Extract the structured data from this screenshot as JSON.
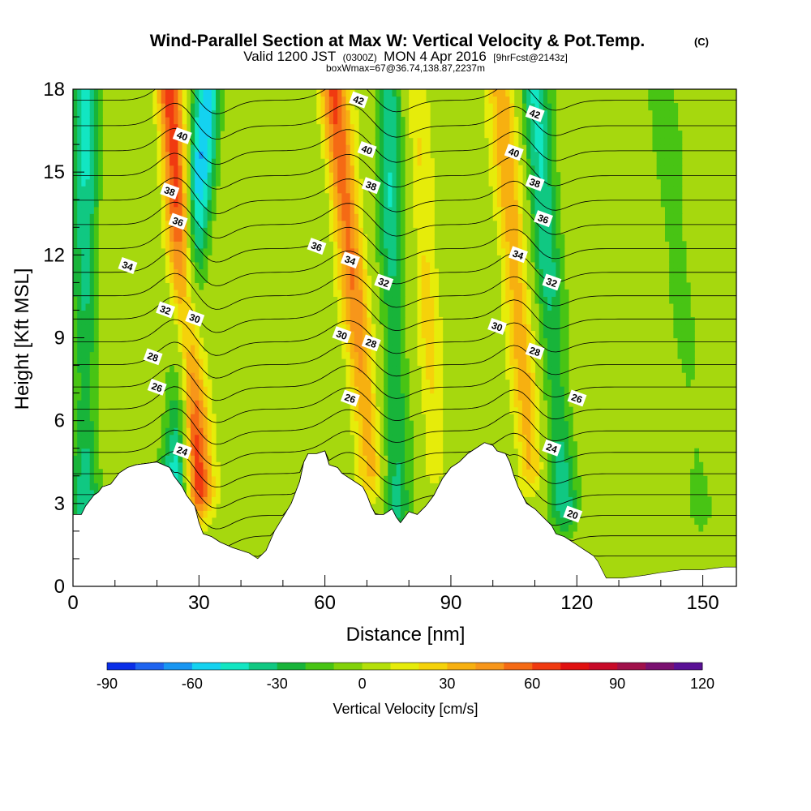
{
  "chart_data": {
    "type": "heatmap",
    "title": "Wind-Parallel Section at Max W: Vertical Velocity & Pot.Temp.",
    "title_mark": "(C)",
    "subtitle": {
      "valid_prefix": "Valid 1200 JST",
      "utc": "(0300Z)",
      "date": "MON 4 Apr 2016",
      "fcst": "[9hrFcst@2143z]"
    },
    "info_line": "boxWmax=67@36.74,138.87,2237m",
    "xlabel": "Distance [nm]",
    "ylabel": "Height [Kft MSL]",
    "xlim": [
      0,
      158
    ],
    "ylim": [
      0,
      18
    ],
    "x_ticks": [
      0,
      30,
      60,
      90,
      120,
      150
    ],
    "y_ticks": [
      0,
      3,
      6,
      9,
      12,
      15,
      18
    ],
    "y_tick_labels": [
      "0",
      "3",
      "6",
      "9",
      "12",
      "15",
      "18"
    ],
    "grid": false,
    "colorbar": {
      "label": "Vertical Velocity [cm/s]",
      "min": -90,
      "max": 120,
      "step": 10,
      "tick_values": [
        -90,
        -60,
        -30,
        0,
        30,
        60,
        90,
        120
      ],
      "colors": [
        "#0a2ee8",
        "#1e64f0",
        "#1896f2",
        "#14d2f0",
        "#12e6c2",
        "#10c882",
        "#18b43a",
        "#48c414",
        "#82d20a",
        "#b4e00a",
        "#e6ec0a",
        "#f5d20a",
        "#f7b010",
        "#f7961a",
        "#f56a14",
        "#f03a10",
        "#e01010",
        "#c80a28",
        "#a0104a",
        "#7a1070",
        "#5a1096"
      ]
    },
    "terrain_kft": [
      [
        0,
        2.6
      ],
      [
        2,
        2.6
      ],
      [
        3,
        2.9
      ],
      [
        5,
        3.3
      ],
      [
        6,
        3.4
      ],
      [
        7,
        3.6
      ],
      [
        9,
        3.7
      ],
      [
        10,
        3.9
      ],
      [
        11,
        4.1
      ],
      [
        13,
        4.3
      ],
      [
        15,
        4.4
      ],
      [
        20,
        4.5
      ],
      [
        23,
        4.3
      ],
      [
        24,
        4.0
      ],
      [
        25,
        3.8
      ],
      [
        26,
        3.6
      ],
      [
        27,
        3.3
      ],
      [
        28,
        3.1
      ],
      [
        29,
        2.9
      ],
      [
        30,
        2.3
      ],
      [
        31,
        1.9
      ],
      [
        33,
        1.8
      ],
      [
        35,
        1.6
      ],
      [
        38,
        1.4
      ],
      [
        40,
        1.3
      ],
      [
        42,
        1.2
      ],
      [
        44,
        1.0
      ],
      [
        46,
        1.3
      ],
      [
        48,
        2.0
      ],
      [
        50,
        2.5
      ],
      [
        52,
        3.0
      ],
      [
        54,
        3.8
      ],
      [
        55,
        4.5
      ],
      [
        56,
        4.8
      ],
      [
        58,
        4.8
      ],
      [
        60,
        4.9
      ],
      [
        61,
        4.4
      ],
      [
        63,
        4.3
      ],
      [
        64,
        4.1
      ],
      [
        66,
        3.9
      ],
      [
        68,
        3.7
      ],
      [
        69,
        3.6
      ],
      [
        70,
        3.3
      ],
      [
        71,
        2.9
      ],
      [
        72,
        2.6
      ],
      [
        74,
        2.6
      ],
      [
        76,
        2.8
      ],
      [
        77,
        2.5
      ],
      [
        78,
        2.3
      ],
      [
        80,
        2.7
      ],
      [
        82,
        2.6
      ],
      [
        84,
        2.9
      ],
      [
        85,
        3.1
      ],
      [
        86,
        3.3
      ],
      [
        87,
        3.6
      ],
      [
        88,
        3.9
      ],
      [
        89,
        4.1
      ],
      [
        90,
        4.3
      ],
      [
        92,
        4.5
      ],
      [
        94,
        4.8
      ],
      [
        96,
        5.0
      ],
      [
        98,
        5.2
      ],
      [
        100,
        5.1
      ],
      [
        101,
        4.9
      ],
      [
        103,
        4.8
      ],
      [
        104,
        4.5
      ],
      [
        105,
        4.0
      ],
      [
        106,
        3.6
      ],
      [
        107,
        3.3
      ],
      [
        108,
        3.0
      ],
      [
        109,
        2.9
      ],
      [
        110,
        2.8
      ],
      [
        112,
        2.5
      ],
      [
        114,
        2.2
      ],
      [
        115,
        1.9
      ],
      [
        117,
        1.8
      ],
      [
        119,
        1.6
      ],
      [
        120,
        1.5
      ],
      [
        122,
        1.3
      ],
      [
        124,
        1.1
      ],
      [
        125,
        0.9
      ],
      [
        126,
        0.6
      ],
      [
        127,
        0.3
      ],
      [
        131,
        0.3
      ],
      [
        136,
        0.4
      ],
      [
        140,
        0.5
      ],
      [
        145,
        0.6
      ],
      [
        150,
        0.6
      ],
      [
        155,
        0.7
      ],
      [
        158,
        0.7
      ]
    ],
    "updraft_bands": [
      {
        "x_top": 23,
        "x_bottom": 30,
        "y_bottom": 3.5,
        "peak_w": 80
      },
      {
        "x_top": 62,
        "x_bottom": 71,
        "y_bottom": 4.5,
        "peak_w": 60
      },
      {
        "x_top": 102,
        "x_bottom": 109,
        "y_bottom": 4.5,
        "peak_w": 70
      },
      {
        "x_top": 82,
        "x_bottom": 86,
        "y_bottom": 4.5,
        "peak_w": 25
      }
    ],
    "downdraft_bands": [
      {
        "x_top": 32,
        "x_bottom": 24,
        "y_bottom": 3.5,
        "peak_w": -60
      },
      {
        "x_top": 3,
        "x_bottom": 3,
        "y_bottom": 3.0,
        "peak_w": -45
      },
      {
        "x_top": 75,
        "x_bottom": 77,
        "y_bottom": 3.0,
        "peak_w": -40
      },
      {
        "x_top": 110,
        "x_bottom": 117,
        "y_bottom": 3.0,
        "peak_w": -40
      },
      {
        "x_top": 140,
        "x_bottom": 150,
        "y_bottom": 3.0,
        "peak_w": -15
      }
    ],
    "theta_contours": {
      "interval": 2,
      "min": 20,
      "max": 42,
      "labels": [
        {
          "value": "42",
          "x": 68,
          "y": 17.6
        },
        {
          "value": "42",
          "x": 110,
          "y": 17.1
        },
        {
          "value": "40",
          "x": 26,
          "y": 16.3
        },
        {
          "value": "40",
          "x": 70,
          "y": 15.8
        },
        {
          "value": "40",
          "x": 105,
          "y": 15.7
        },
        {
          "value": "38",
          "x": 23,
          "y": 14.3
        },
        {
          "value": "38",
          "x": 71,
          "y": 14.5
        },
        {
          "value": "38",
          "x": 110,
          "y": 14.6
        },
        {
          "value": "36",
          "x": 25,
          "y": 13.2
        },
        {
          "value": "36",
          "x": 58,
          "y": 12.3
        },
        {
          "value": "36",
          "x": 112,
          "y": 13.3
        },
        {
          "value": "34",
          "x": 13,
          "y": 11.6
        },
        {
          "value": "34",
          "x": 66,
          "y": 11.8
        },
        {
          "value": "34",
          "x": 106,
          "y": 12.0
        },
        {
          "value": "32",
          "x": 22,
          "y": 10.0
        },
        {
          "value": "32",
          "x": 74,
          "y": 11.0
        },
        {
          "value": "32",
          "x": 114,
          "y": 11.0
        },
        {
          "value": "30",
          "x": 29,
          "y": 9.7
        },
        {
          "value": "30",
          "x": 64,
          "y": 9.1
        },
        {
          "value": "30",
          "x": 101,
          "y": 9.4
        },
        {
          "value": "28",
          "x": 19,
          "y": 8.3
        },
        {
          "value": "28",
          "x": 71,
          "y": 8.8
        },
        {
          "value": "28",
          "x": 110,
          "y": 8.5
        },
        {
          "value": "26",
          "x": 20,
          "y": 7.2
        },
        {
          "value": "26",
          "x": 66,
          "y": 6.8
        },
        {
          "value": "26",
          "x": 120,
          "y": 6.8
        },
        {
          "value": "24",
          "x": 26,
          "y": 4.9
        },
        {
          "value": "24",
          "x": 114,
          "y": 5.0
        },
        {
          "value": "20",
          "x": 119,
          "y": 2.6
        }
      ]
    }
  }
}
